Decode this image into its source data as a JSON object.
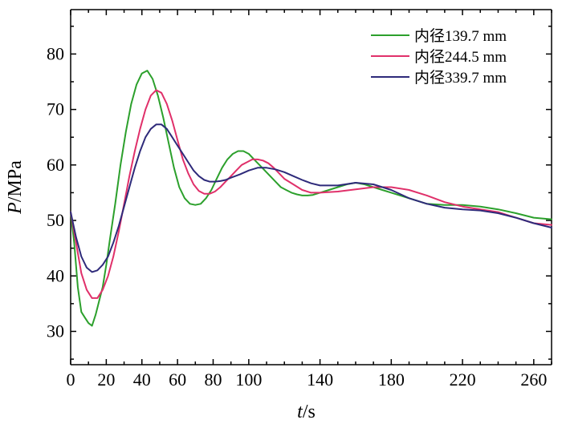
{
  "chart_data": {
    "type": "line",
    "title": "",
    "xlabel_italic": "t",
    "xlabel_unit": "/s",
    "ylabel_italic": "P",
    "ylabel_unit": "/MPa",
    "xlim": [
      0,
      270
    ],
    "ylim": [
      24,
      88
    ],
    "x_ticks": [
      0,
      20,
      40,
      60,
      80,
      100,
      140,
      180,
      220,
      260
    ],
    "y_ticks": [
      30,
      40,
      50,
      60,
      70,
      80
    ],
    "grid": false,
    "legend_position": "top-right",
    "series": [
      {
        "name": "内径139.7 mm",
        "color": "#2ca02c",
        "x": [
          0,
          2,
          4,
          6,
          8,
          10,
          12,
          14,
          16,
          18,
          20,
          22,
          25,
          28,
          31,
          34,
          37,
          40,
          43,
          46,
          49,
          52,
          55,
          58,
          61,
          64,
          67,
          70,
          73,
          76,
          79,
          82,
          85,
          88,
          91,
          94,
          97,
          100,
          103,
          106,
          109,
          112,
          115,
          118,
          121,
          124,
          127,
          130,
          133,
          136,
          140,
          145,
          150,
          155,
          160,
          165,
          170,
          175,
          180,
          190,
          200,
          210,
          220,
          230,
          240,
          250,
          260,
          270
        ],
        "y": [
          51.5,
          46,
          38,
          33.5,
          32.5,
          31.5,
          31,
          33,
          35.5,
          38,
          42,
          46.5,
          53,
          60,
          66,
          71,
          74.5,
          76.5,
          77,
          75.5,
          72.5,
          68.5,
          64,
          59.5,
          56,
          54,
          53,
          52.8,
          53,
          54,
          55.5,
          57.5,
          59.5,
          61,
          62,
          62.5,
          62.5,
          62,
          61,
          60,
          59,
          58,
          57,
          56,
          55.5,
          55,
          54.7,
          54.5,
          54.5,
          54.6,
          55,
          55.5,
          56,
          56.5,
          56.8,
          56.5,
          56,
          55.5,
          55,
          54,
          53,
          52.8,
          52.8,
          52.5,
          52,
          51.3,
          50.5,
          50.2
        ]
      },
      {
        "name": "内径244.5 mm",
        "color": "#e0306a",
        "x": [
          0,
          3,
          6,
          9,
          12,
          15,
          18,
          21,
          24,
          27,
          30,
          33,
          36,
          39,
          42,
          45,
          48,
          51,
          54,
          57,
          60,
          63,
          66,
          69,
          72,
          75,
          78,
          81,
          84,
          87,
          90,
          93,
          96,
          99,
          102,
          105,
          108,
          111,
          114,
          117,
          120,
          125,
          130,
          135,
          140,
          150,
          160,
          170,
          180,
          190,
          200,
          210,
          220,
          230,
          240,
          250,
          260,
          270
        ],
        "y": [
          51.5,
          46,
          40.5,
          37.5,
          36,
          36,
          37.5,
          40,
          43.5,
          48,
          53,
          58,
          62.5,
          66.5,
          70,
          72.5,
          73.5,
          73,
          71,
          68,
          64.5,
          61,
          58.5,
          56.5,
          55.3,
          54.8,
          54.8,
          55.2,
          56,
          57,
          58,
          59,
          60,
          60.5,
          61,
          61,
          60.8,
          60.3,
          59.5,
          58.5,
          57.5,
          56.5,
          55.5,
          55,
          55,
          55.2,
          55.6,
          56,
          56,
          55.5,
          54.5,
          53.3,
          52.5,
          52,
          51.5,
          50.5,
          49.5,
          49.2
        ]
      },
      {
        "name": "内径339.7 mm",
        "color": "#2e2a7a",
        "x": [
          0,
          3,
          6,
          9,
          12,
          15,
          18,
          21,
          24,
          27,
          30,
          33,
          36,
          39,
          42,
          45,
          48,
          51,
          54,
          57,
          60,
          63,
          66,
          69,
          72,
          75,
          78,
          81,
          84,
          87,
          90,
          95,
          100,
          105,
          110,
          115,
          120,
          125,
          130,
          135,
          140,
          150,
          160,
          170,
          180,
          190,
          200,
          210,
          220,
          230,
          240,
          250,
          260,
          270
        ],
        "y": [
          51.5,
          47,
          43.5,
          41.5,
          40.7,
          41,
          42,
          43.5,
          46,
          49,
          52.5,
          56,
          59.5,
          62.5,
          65,
          66.5,
          67.3,
          67.3,
          66.5,
          65,
          63.5,
          62,
          60.5,
          59,
          58,
          57.3,
          57,
          57,
          57.1,
          57.3,
          57.7,
          58.3,
          59,
          59.5,
          59.5,
          59.2,
          58.7,
          58,
          57.3,
          56.7,
          56.3,
          56.3,
          56.8,
          56.5,
          55.5,
          54,
          53,
          52.3,
          52,
          51.8,
          51.3,
          50.5,
          49.5,
          48.7
        ]
      }
    ]
  }
}
